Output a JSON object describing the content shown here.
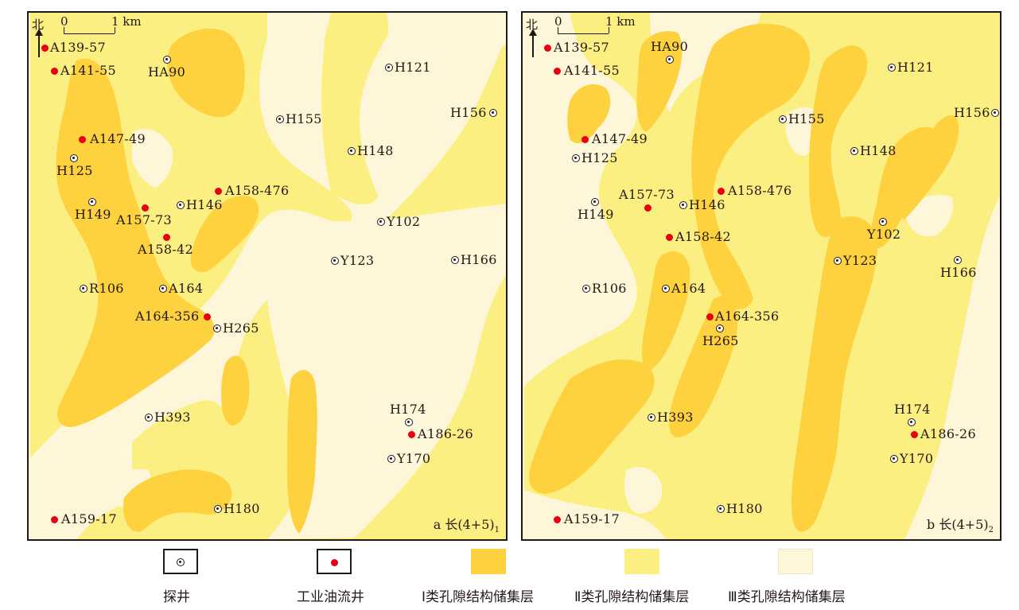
{
  "colors": {
    "class1": "#fdd23e",
    "class2": "#fcef81",
    "class3": "#fef6d8",
    "oil_well": "#e60012",
    "line": "#231815"
  },
  "maps": [
    {
      "panel_label": "a 长(4+5)",
      "panel_sub": "1",
      "north_label": "北",
      "scale_zero": "0",
      "scale_one": "1 km",
      "wells": [
        {
          "id": "A139-57",
          "type": "oil"
        },
        {
          "id": "A141-55",
          "type": "oil"
        },
        {
          "id": "HA90",
          "type": "exploration"
        },
        {
          "id": "H121",
          "type": "exploration"
        },
        {
          "id": "H155",
          "type": "exploration"
        },
        {
          "id": "H156",
          "type": "exploration"
        },
        {
          "id": "A147-49",
          "type": "oil"
        },
        {
          "id": "H148",
          "type": "exploration"
        },
        {
          "id": "H125",
          "type": "exploration"
        },
        {
          "id": "A158-476",
          "type": "oil"
        },
        {
          "id": "H149",
          "type": "exploration"
        },
        {
          "id": "A157-73",
          "type": "oil"
        },
        {
          "id": "H146",
          "type": "exploration"
        },
        {
          "id": "Y102",
          "type": "exploration"
        },
        {
          "id": "A158-42",
          "type": "oil"
        },
        {
          "id": "Y123",
          "type": "exploration"
        },
        {
          "id": "H166",
          "type": "exploration"
        },
        {
          "id": "R106",
          "type": "exploration"
        },
        {
          "id": "A164",
          "type": "exploration"
        },
        {
          "id": "A164-356",
          "type": "oil"
        },
        {
          "id": "H265",
          "type": "exploration"
        },
        {
          "id": "H174",
          "type": "exploration"
        },
        {
          "id": "H393",
          "type": "exploration"
        },
        {
          "id": "A186-26",
          "type": "oil"
        },
        {
          "id": "Y170",
          "type": "exploration"
        },
        {
          "id": "H180",
          "type": "exploration"
        },
        {
          "id": "A159-17",
          "type": "oil"
        }
      ]
    },
    {
      "panel_label": "b 长(4+5)",
      "panel_sub": "2",
      "north_label": "北",
      "scale_zero": "0",
      "scale_one": "1 km",
      "wells": [
        {
          "id": "A139-57",
          "type": "oil"
        },
        {
          "id": "HA90",
          "type": "exploration"
        },
        {
          "id": "A141-55",
          "type": "oil"
        },
        {
          "id": "H121",
          "type": "exploration"
        },
        {
          "id": "H156",
          "type": "exploration"
        },
        {
          "id": "H155",
          "type": "exploration"
        },
        {
          "id": "A147-49",
          "type": "oil"
        },
        {
          "id": "H148",
          "type": "exploration"
        },
        {
          "id": "H125",
          "type": "exploration"
        },
        {
          "id": "A158-476",
          "type": "oil"
        },
        {
          "id": "A157-73",
          "type": "oil"
        },
        {
          "id": "H146",
          "type": "exploration"
        },
        {
          "id": "H149",
          "type": "exploration"
        },
        {
          "id": "Y102",
          "type": "exploration"
        },
        {
          "id": "A158-42",
          "type": "oil"
        },
        {
          "id": "Y123",
          "type": "exploration"
        },
        {
          "id": "H166",
          "type": "exploration"
        },
        {
          "id": "R106",
          "type": "exploration"
        },
        {
          "id": "A164",
          "type": "exploration"
        },
        {
          "id": "A164-356",
          "type": "oil"
        },
        {
          "id": "H265",
          "type": "exploration"
        },
        {
          "id": "H174",
          "type": "exploration"
        },
        {
          "id": "H393",
          "type": "exploration"
        },
        {
          "id": "A186-26",
          "type": "oil"
        },
        {
          "id": "Y170",
          "type": "exploration"
        },
        {
          "id": "H180",
          "type": "exploration"
        },
        {
          "id": "A159-17",
          "type": "oil"
        }
      ]
    }
  ],
  "legend": [
    {
      "key": "exploration",
      "label": "探井",
      "symbol": "exploration-well-icon"
    },
    {
      "key": "oil",
      "label": "工业油流井",
      "symbol": "oil-well-icon"
    },
    {
      "key": "class1",
      "label": "Ⅰ类孔隙结构储集层"
    },
    {
      "key": "class2",
      "label": "Ⅱ类孔隙结构储集层"
    },
    {
      "key": "class3",
      "label": "Ⅲ类孔隙结构储集层"
    }
  ]
}
